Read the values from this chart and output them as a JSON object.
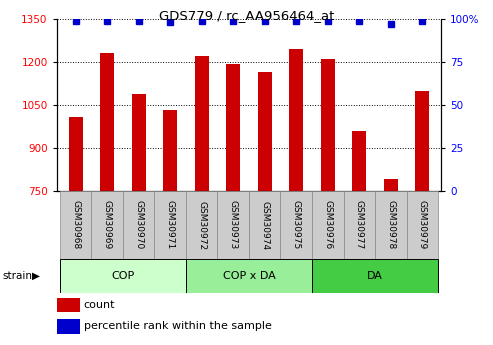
{
  "title": "GDS779 / rc_AA956464_at",
  "samples": [
    "GSM30968",
    "GSM30969",
    "GSM30970",
    "GSM30971",
    "GSM30972",
    "GSM30973",
    "GSM30974",
    "GSM30975",
    "GSM30976",
    "GSM30977",
    "GSM30978",
    "GSM30979"
  ],
  "counts": [
    1010,
    1230,
    1090,
    1035,
    1220,
    1195,
    1165,
    1245,
    1210,
    960,
    795,
    1100
  ],
  "percentiles": [
    99,
    99,
    99,
    98,
    99,
    99,
    99,
    99,
    99,
    99,
    97,
    99
  ],
  "ylim_left": [
    750,
    1350
  ],
  "ylim_right": [
    0,
    100
  ],
  "yticks_left": [
    750,
    900,
    1050,
    1200,
    1350
  ],
  "yticks_right": [
    0,
    25,
    50,
    75,
    100
  ],
  "groups": [
    {
      "label": "COP",
      "start": 0,
      "end": 4
    },
    {
      "label": "COP x DA",
      "start": 4,
      "end": 8
    },
    {
      "label": "DA",
      "start": 8,
      "end": 12
    }
  ],
  "group_colors": [
    "#ccffcc",
    "#99ee99",
    "#44cc44"
  ],
  "bar_color": "#cc0000",
  "dot_color": "#0000cc",
  "bar_width": 0.45,
  "label_count": "count",
  "label_percentile": "percentile rank within the sample",
  "strain_label": "strain"
}
